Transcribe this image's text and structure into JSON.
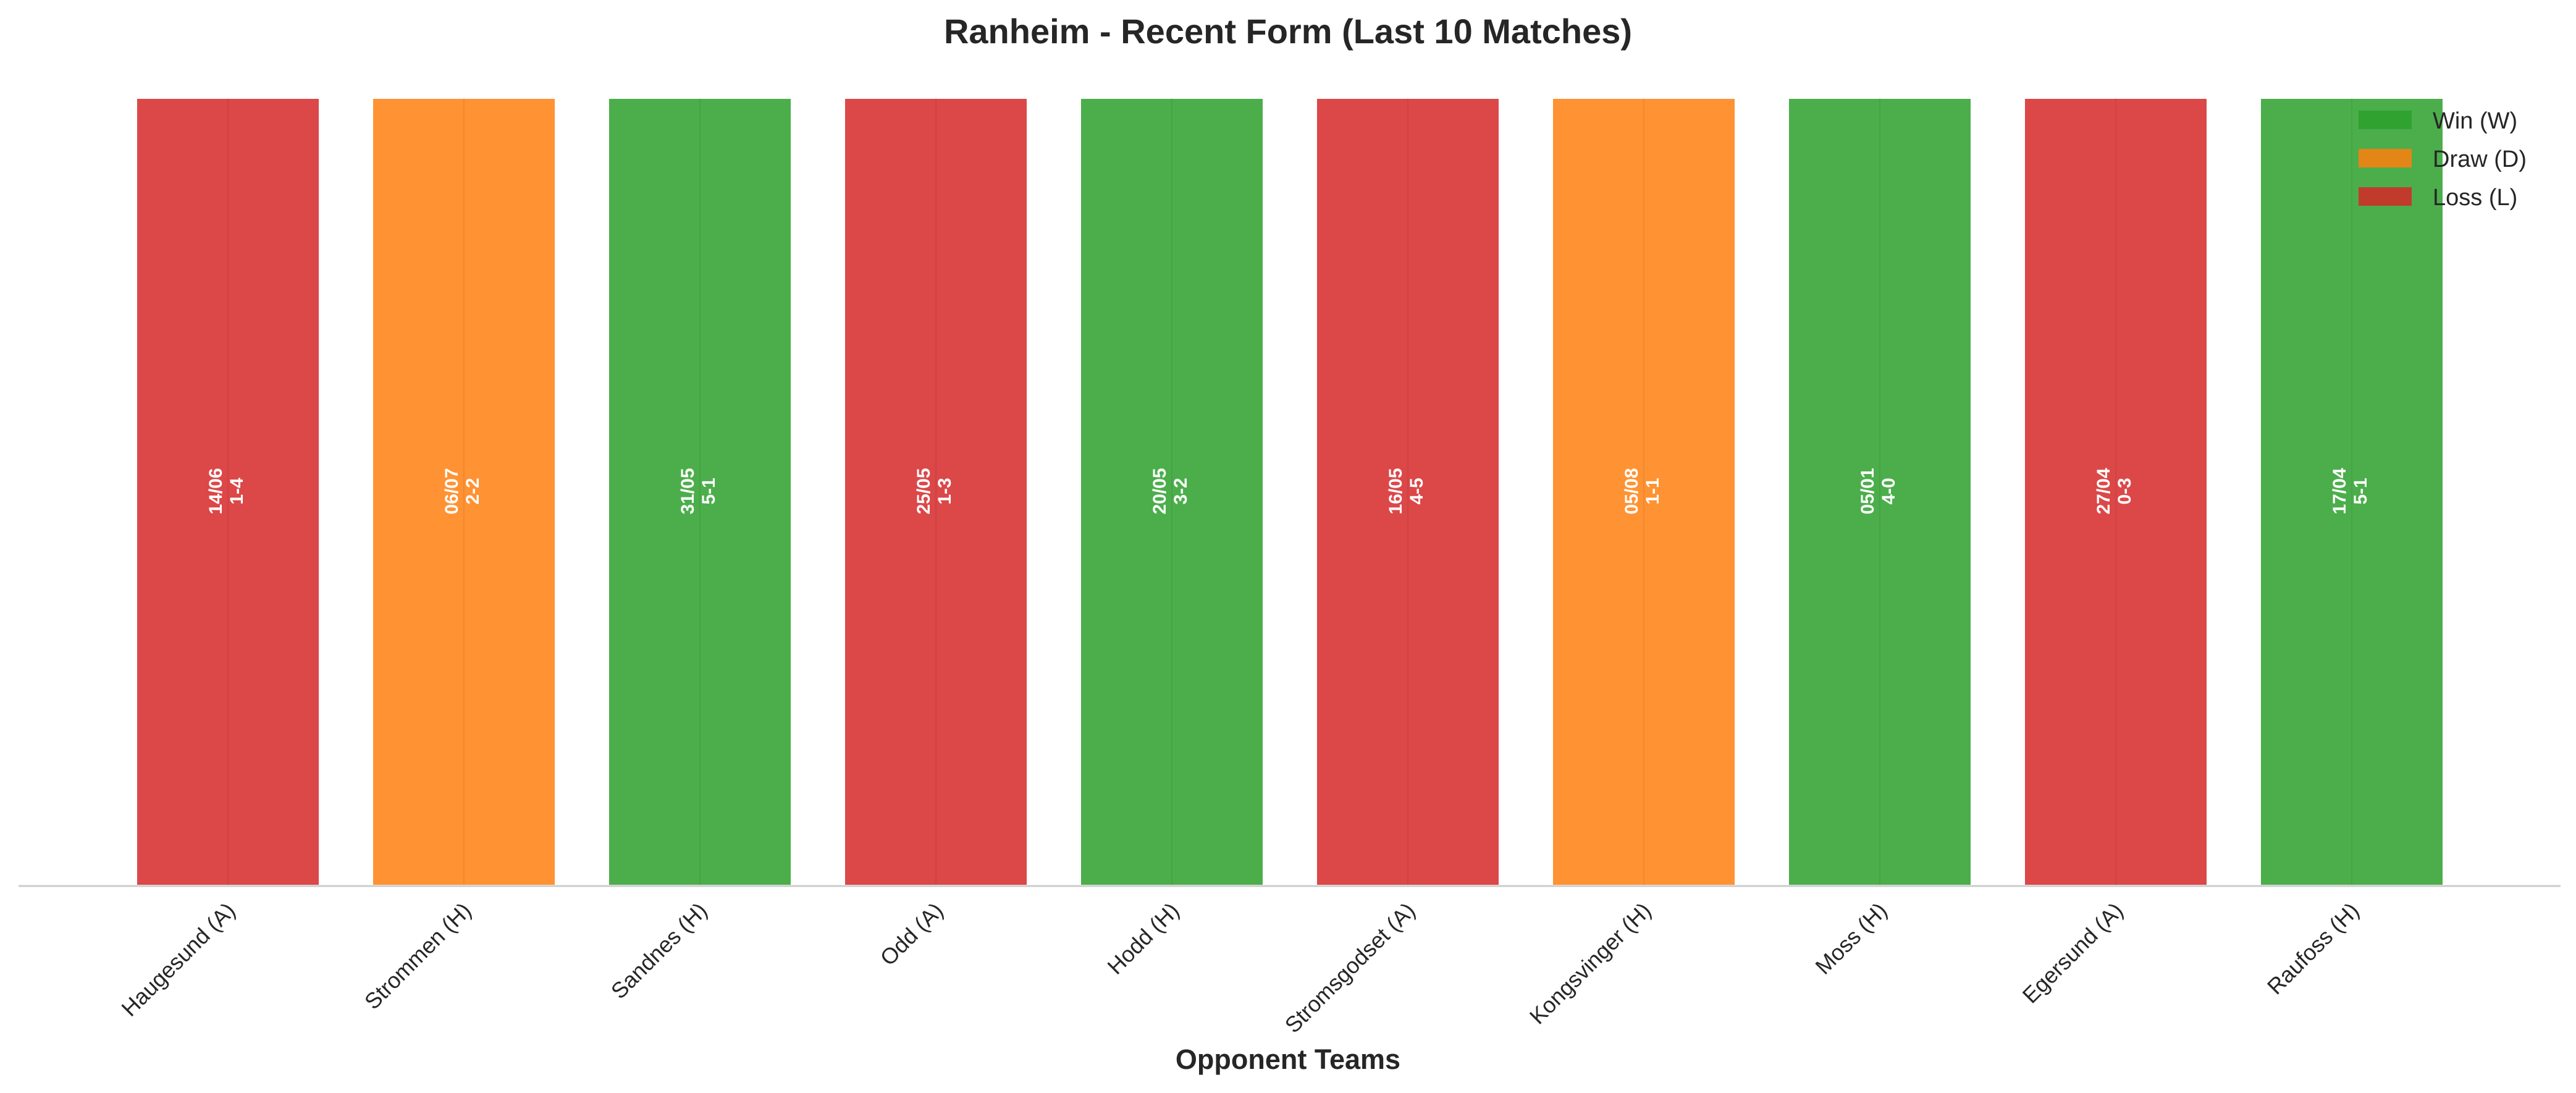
{
  "chart_data": {
    "type": "bar",
    "title": "Ranheim - Recent Form (Last 10 Matches)",
    "xlabel": "Opponent Teams",
    "ylabel": "",
    "categories": [
      "Haugesund (A)",
      "Strommen (H)",
      "Sandnes (H)",
      "Odd (A)",
      "Hodd (H)",
      "Stromsgodset (A)",
      "Kongsvinger (H)",
      "Moss (H)",
      "Egersund (A)",
      "Raufoss (H)"
    ],
    "values": [
      1,
      1,
      1,
      1,
      1,
      1,
      1,
      1,
      1,
      1
    ],
    "results": [
      "L",
      "D",
      "W",
      "L",
      "W",
      "L",
      "D",
      "W",
      "L",
      "W"
    ],
    "dates": [
      "14/06",
      "06/07",
      "31/05",
      "25/05",
      "20/05",
      "16/05",
      "05/08",
      "05/01",
      "27/04",
      "17/04"
    ],
    "scores": [
      "1-4",
      "2-2",
      "5-1",
      "1-3",
      "3-2",
      "4-5",
      "1-1",
      "4-0",
      "0-3",
      "5-1"
    ],
    "ylim": [
      0,
      1
    ],
    "grid": false,
    "legend": {
      "position": "top-right",
      "entries": [
        {
          "key": "W",
          "label": "Win (W)",
          "color": "#2ca02c"
        },
        {
          "key": "D",
          "label": "Draw (D)",
          "color": "#ff7f0e"
        },
        {
          "key": "L",
          "label": "Loss (L)",
          "color": "#d62728"
        }
      ]
    }
  }
}
